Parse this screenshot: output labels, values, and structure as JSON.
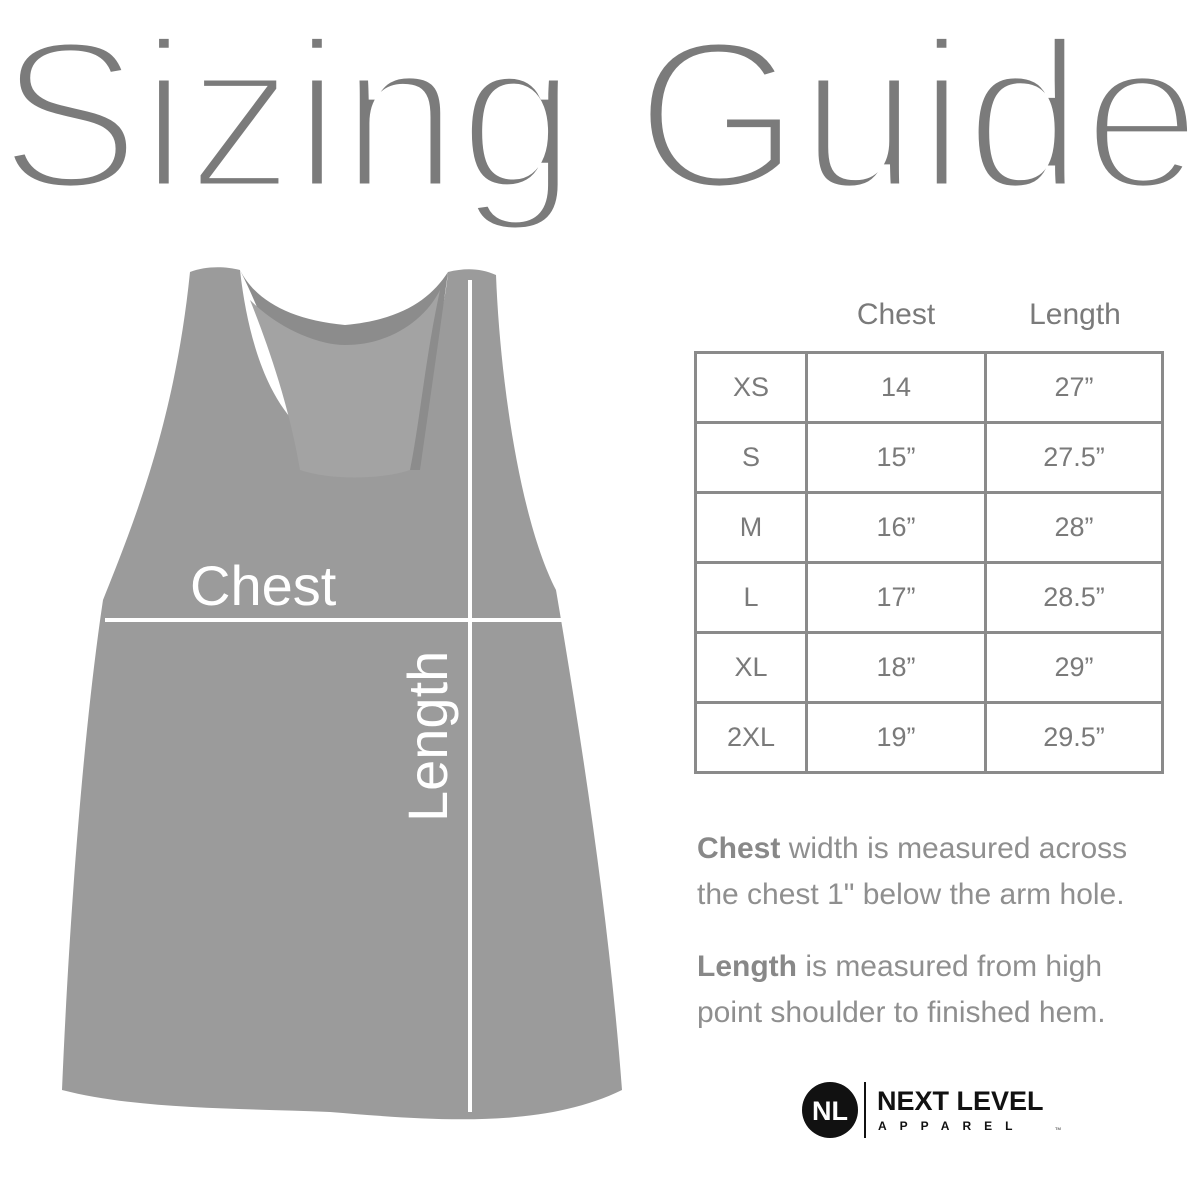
{
  "title": "Sizing Guide",
  "garment": {
    "chest_label": "Chest",
    "length_label": "Length",
    "color": "#9a9a9a"
  },
  "table": {
    "headers": [
      "",
      "Chest",
      "Length"
    ],
    "rows": [
      {
        "size": "XS",
        "chest": "14",
        "length": "27”"
      },
      {
        "size": "S",
        "chest": "15”",
        "length": "27.5”"
      },
      {
        "size": "M",
        "chest": "16”",
        "length": "28”"
      },
      {
        "size": "L",
        "chest": "17”",
        "length": "28.5”"
      },
      {
        "size": "XL",
        "chest": "18”",
        "length": "29”"
      },
      {
        "size": "2XL",
        "chest": "19”",
        "length": "29.5”"
      }
    ]
  },
  "notes": [
    {
      "bold": "Chest",
      "text": " width is measured across the chest 1\" below the arm hole."
    },
    {
      "bold": "Length",
      "text": " is measured from high point shoulder to finished hem."
    }
  ],
  "logo": {
    "mark": "NL",
    "name": "NEXT LEVEL",
    "sub": "APPAREL",
    "tm": "TM"
  }
}
